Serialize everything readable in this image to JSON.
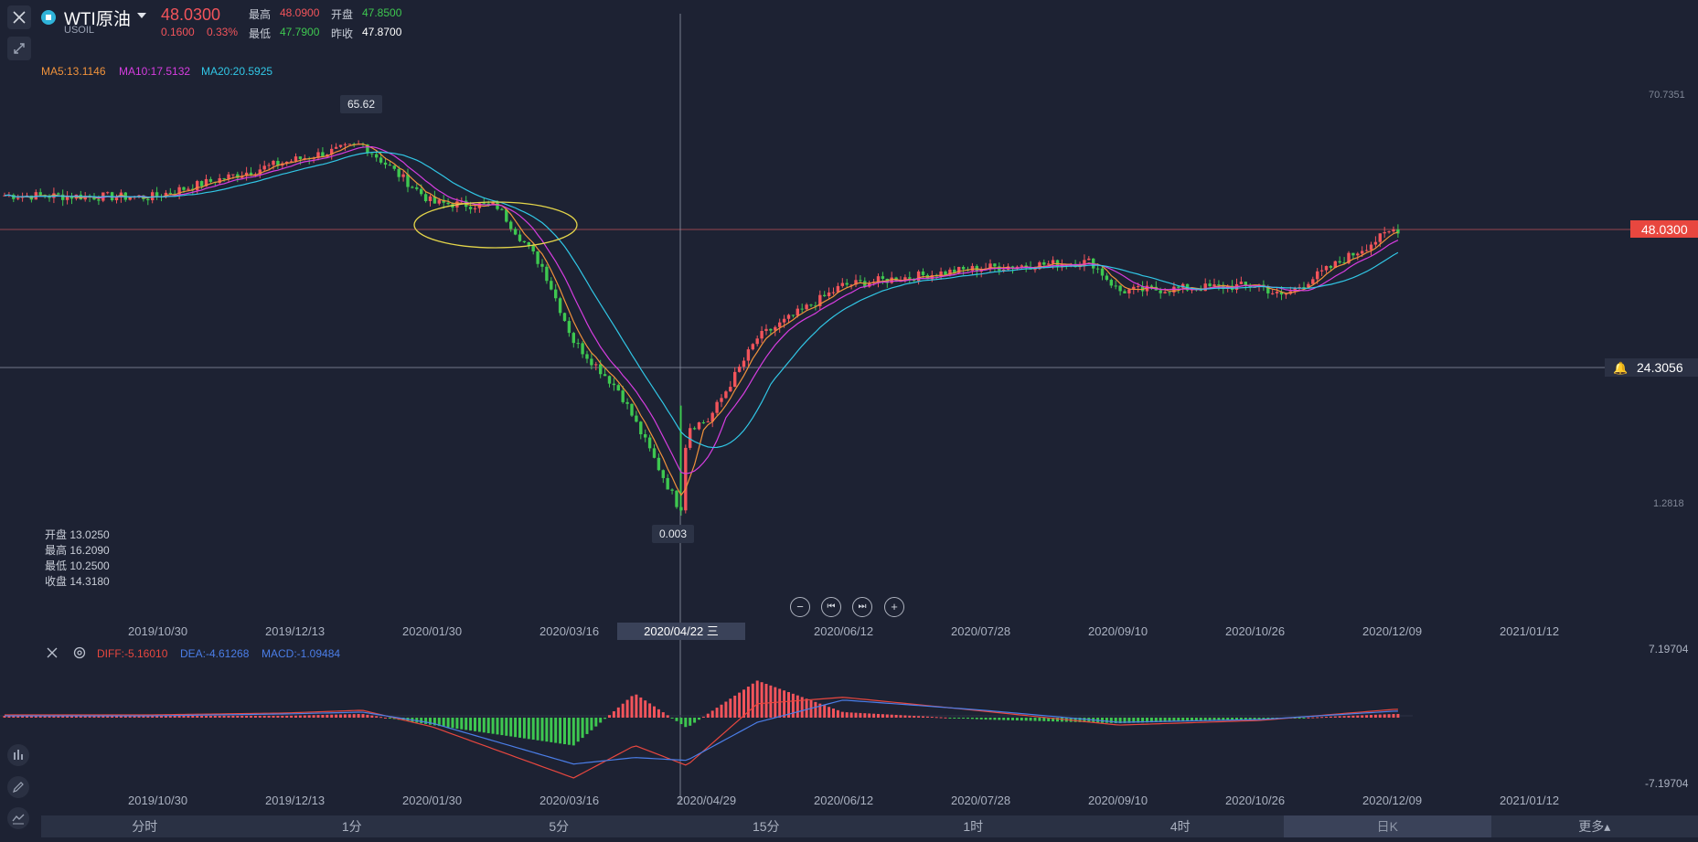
{
  "header": {
    "symbol_name": "WTI原油",
    "symbol_code": "USOIL",
    "price": "48.0300",
    "change": "0.1600",
    "change_pct": "0.33%",
    "high_label": "最高",
    "high": "48.0900",
    "open_label": "开盘",
    "open": "47.8500",
    "low_label": "最低",
    "low": "47.7900",
    "prev_close_label": "昨收",
    "prev_close": "47.8700"
  },
  "ma_legend": {
    "ma5": "MA5:13.1146",
    "ma10": "MA10:17.5132",
    "ma20": "MA20:20.5925"
  },
  "colors": {
    "up": "#f2545b",
    "down": "#3ec750",
    "ma5": "#f0923b",
    "ma10": "#d63de0",
    "ma20": "#31c7e6",
    "diff": "#e8473f",
    "dea": "#4b7ee8",
    "ellipse": "#e4d54a",
    "bg": "#1d2233"
  },
  "price_axis": {
    "top": "70.7351",
    "bottom": "1.2818",
    "current": "48.0300",
    "crosshair": "24.3056"
  },
  "markers": {
    "high": "65.62",
    "low": "0.003"
  },
  "ohlc_box": {
    "open": "开盘 13.0250",
    "high": "最高 16.2090",
    "low": "最低 10.2500",
    "close": "收盘 14.3180"
  },
  "date_axis_main": [
    "2019/10/30",
    "2019/12/13",
    "2020/01/30",
    "2020/03/16",
    "2020/06/12",
    "2020/07/28",
    "2020/09/10",
    "2020/10/26",
    "2020/12/09",
    "2021/01/12"
  ],
  "crosshair_date": "2020/04/22 三",
  "macd_legend": {
    "diff": "DIFF:-5.16010",
    "dea": "DEA:-4.61268",
    "macd": "MACD:-1.09484"
  },
  "macd_axis": {
    "top": "7.19704",
    "bottom": "-7.19704"
  },
  "date_axis_macd": [
    "2019/10/30",
    "2019/12/13",
    "2020/01/30",
    "2020/03/16",
    "2020/04/29",
    "2020/06/12",
    "2020/07/28",
    "2020/09/10",
    "2020/10/26",
    "2020/12/09",
    "2021/01/12"
  ],
  "timeframes": [
    "分时",
    "1分",
    "5分",
    "15分",
    "1时",
    "4时",
    "日K",
    "更多▴"
  ],
  "active_timeframe": "日K",
  "icons": [
    "close-icon",
    "collapse-icon",
    "symbol-logo-icon",
    "dropdown-icon",
    "zoom-out-icon",
    "prev-icon",
    "next-icon",
    "zoom-in-icon",
    "alarm-bell-icon",
    "settings-icon",
    "indicator-icon",
    "draw-icon",
    "line-tool-icon"
  ],
  "chart_data": {
    "type": "candlestick",
    "title": "WTI原油 USOIL 日K",
    "x": [
      "2019-10-30",
      "2019-12-13",
      "2020-01-07",
      "2020-01-30",
      "2020-02-20",
      "2020-03-06",
      "2020-03-16",
      "2020-03-31",
      "2020-04-20",
      "2020-04-22",
      "2020-04-29",
      "2020-05-15",
      "2020-06-12",
      "2020-07-28",
      "2020-09-01",
      "2020-09-10",
      "2020-10-26",
      "2020-11-02",
      "2020-12-09"
    ],
    "close": [
      53.5,
      59.5,
      62.5,
      52.5,
      52.0,
      41.5,
      29.0,
      20.5,
      0.003,
      14.3,
      15.5,
      29.5,
      38.5,
      41.5,
      42.5,
      37.5,
      38.5,
      36.5,
      48.03
    ],
    "ylim": [
      1.2818,
      70.7351
    ],
    "macd": {
      "x": [
        "2019-10-30",
        "2019-12-13",
        "2020-01-07",
        "2020-01-30",
        "2020-03-16",
        "2020-04-05",
        "2020-04-22",
        "2020-05-15",
        "2020-06-12",
        "2020-07-28",
        "2020-09-10",
        "2020-10-26",
        "2020-12-09"
      ],
      "diff": [
        0.3,
        0.5,
        0.8,
        -1.0,
        -6.5,
        -3.0,
        -5.16,
        1.5,
        2.2,
        0.7,
        -0.8,
        -0.3,
        0.9
      ],
      "dea": [
        0.2,
        0.4,
        0.6,
        -0.6,
        -5.0,
        -4.3,
        -4.61,
        -0.5,
        1.9,
        0.8,
        -0.5,
        -0.2,
        0.7
      ],
      "ylim": [
        -7.19704,
        7.19704
      ]
    }
  }
}
